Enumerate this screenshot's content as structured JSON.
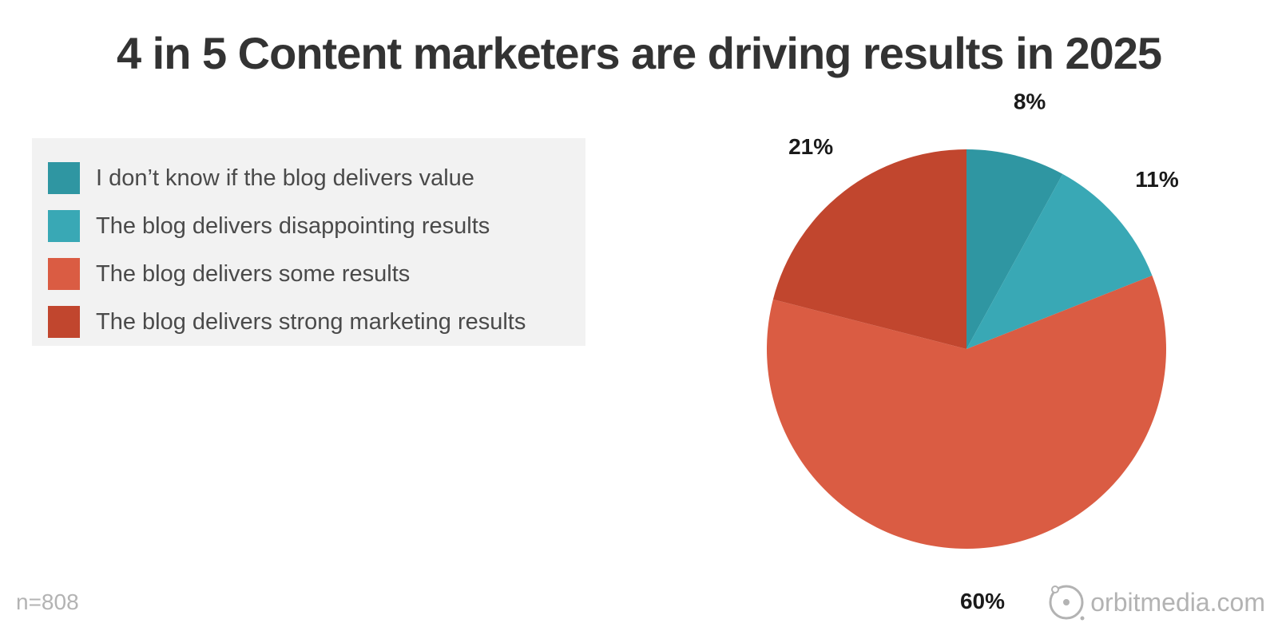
{
  "title": "4 in 5 Content marketers are driving results in 2025",
  "chart_data": {
    "type": "pie",
    "title": "4 in 5 Content marketers are driving results in 2025",
    "legend_position": "top-left",
    "slices": [
      {
        "label": "I don’t know if the blog delivers value",
        "value": 8,
        "value_label": "8%",
        "color": "#2f96a2"
      },
      {
        "label": "The blog delivers disappointing results",
        "value": 11,
        "value_label": "11%",
        "color": "#39a8b5"
      },
      {
        "label": "The blog delivers some results",
        "value": 60,
        "value_label": "60%",
        "color": "#da5c43"
      },
      {
        "label": "The blog delivers strong marketing results",
        "value": 21,
        "value_label": "21%",
        "color": "#c1462e"
      }
    ]
  },
  "footer": {
    "sample_size": "n=808",
    "brand": "orbitmedia.com"
  }
}
